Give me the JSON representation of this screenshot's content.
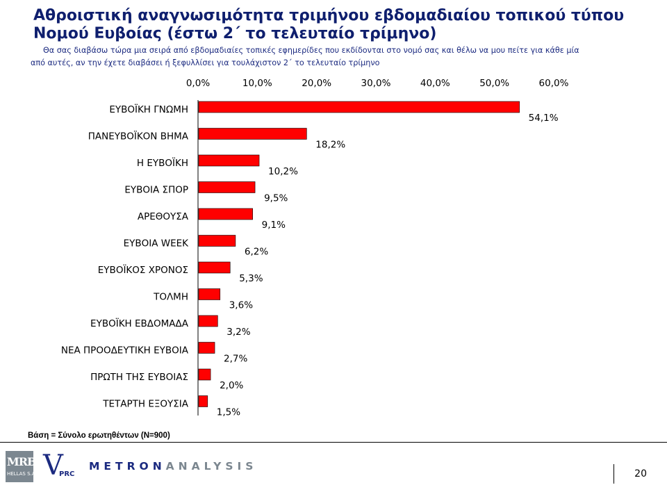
{
  "header": {
    "title_line1": "Αθροιστική αναγνωσιμότητα τριμήνου εβδομαδιαίου τοπικού τύπου",
    "title_line2": "Νομού Ευβοίας (έστω 2΄ το τελευταίο τρίμηνο)",
    "subtitle_line1": "Θα σας διαβάσω τώρα μια σειρά από εβδομαδιαίες τοπικές εφημερίδες που εκδίδονται στο νομό σας και θέλω να μου πείτε για κάθε μία",
    "subtitle_line2": "από αυτές, αν την έχετε διαβάσει ή ξεφυλλίσει για τουλάχιστον 2΄ το τελευταίο τρίμηνο"
  },
  "chart_data": {
    "type": "bar",
    "orientation": "horizontal",
    "categories": [
      "ΕΥΒΟΪΚΗ ΓΝΩΜΗ",
      "ΠΑΝΕΥΒΟΪΚΟΝ ΒΗΜΑ",
      "Η ΕΥΒΟΪΚΗ",
      "ΕΥΒΟΙΑ ΣΠΟΡ",
      "ΑΡΕΘΟΥΣΑ",
      "ΕΥΒΟΙΑ WEEK",
      "ΕΥΒΟΪΚΟΣ ΧΡΟΝΟΣ",
      "ΤΟΛΜΗ",
      "ΕΥΒΟΪΚΗ ΕΒΔΟΜΑΔΑ",
      "ΝΕΑ ΠΡΟΟΔΕΥΤΙΚΗ ΕΥΒΟΙΑ",
      "ΠΡΩΤΗ ΤΗΣ ΕΥΒΟΙΑΣ",
      "ΤΕΤΑΡΤΗ ΕΞΟΥΣΙΑ"
    ],
    "values": [
      54.1,
      18.2,
      10.2,
      9.5,
      9.1,
      6.2,
      5.3,
      3.6,
      3.2,
      2.7,
      2.0,
      1.5
    ],
    "value_labels": [
      "54,1%",
      "18,2%",
      "10,2%",
      "9,5%",
      "9,1%",
      "6,2%",
      "5,3%",
      "3,6%",
      "3,2%",
      "2,7%",
      "2,0%",
      "1,5%"
    ],
    "xlim": [
      0,
      60
    ],
    "ticks": [
      0,
      10,
      20,
      30,
      40,
      50,
      60
    ],
    "tick_labels": [
      "0,0%",
      "10,0%",
      "20,0%",
      "30,0%",
      "40,0%",
      "50,0%",
      "60,0%"
    ],
    "axis_position": "top",
    "grid": false,
    "legend": "none",
    "bar_color": "#ff0000"
  },
  "footer": {
    "base_note": "Βάση = Σύνολο ερωτηθέντων (Ν=900)",
    "logo_mrb": "MRB",
    "logo_mrb_sub": "HELLAS S.A.",
    "logo_vprc_v": "V",
    "logo_vprc_rest": "PRC",
    "logo_metron_1": "METRON",
    "logo_metron_2": "ANALYSIS",
    "page_number": "20"
  }
}
